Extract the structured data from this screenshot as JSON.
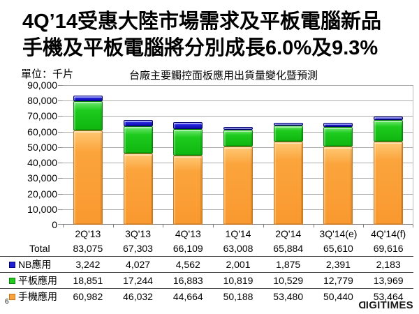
{
  "title": {
    "line1": "4Q’14受惠大陸市場需求及平板電腦新品",
    "line2": "手機及平板電腦將分別成長6.0%及9.3%"
  },
  "unit_label": "單位：千片",
  "chart_data": {
    "type": "bar",
    "stacked": true,
    "title": "台廠主要觸控面板應用出貨量變化暨預測",
    "categories": [
      "2Q'13",
      "3Q'13",
      "4Q'13",
      "1Q'14",
      "2Q'14",
      "3Q'14(e)",
      "4Q'14(f)"
    ],
    "series": [
      {
        "name": "NB應用",
        "color": "#1f1fd6",
        "values": [
          3242,
          4027,
          4562,
          2001,
          1875,
          2391,
          2183
        ]
      },
      {
        "name": "平板應用",
        "color": "#1ecb1e",
        "values": [
          18851,
          17244,
          16883,
          10819,
          10529,
          12779,
          13969
        ]
      },
      {
        "name": "手機應用",
        "color": "#fba43c",
        "values": [
          60982,
          46032,
          44664,
          50188,
          53480,
          50440,
          53464
        ]
      }
    ],
    "stack_order_bottom_to_top": [
      "手機應用",
      "平板應用",
      "NB應用"
    ],
    "totals": {
      "label": "Total",
      "values": [
        83075,
        67303,
        66109,
        63008,
        65884,
        65610,
        69616
      ]
    },
    "ylabel": "千片",
    "ylim": [
      0,
      90000
    ],
    "y_tick_step": 10000,
    "grid": true,
    "legend_position": "table-below"
  },
  "footer": {
    "page_number": "6",
    "logo_first": "D",
    "logo_rest": "IGITIMES"
  }
}
